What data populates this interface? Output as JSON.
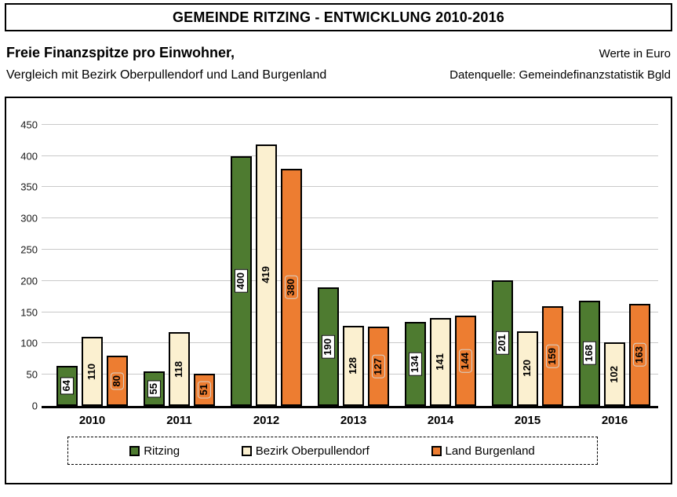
{
  "header": {
    "title": "GEMEINDE RITZING - ENTWICKLUNG 2010-2016",
    "subtitle_bold": "Freie Finanzspitze pro Einwohner,",
    "subtitle": "Vergleich mit Bezirk Oberpullendorf und Land Burgenland",
    "unit_note": "Werte in Euro",
    "source_note": "Datenquelle: Gemeindefinanzstatistik Bgld"
  },
  "chart_data": {
    "type": "bar",
    "categories": [
      "2010",
      "2011",
      "2012",
      "2013",
      "2014",
      "2015",
      "2016"
    ],
    "series": [
      {
        "name": "Ritzing",
        "color": "#4e7b30",
        "label_style": "white-box",
        "values": [
          64,
          55,
          400,
          190,
          134,
          201,
          168
        ]
      },
      {
        "name": "Bezirk Oberpullendorf",
        "color": "#fbf0d0",
        "label_style": "plain",
        "values": [
          110,
          118,
          419,
          128,
          141,
          120,
          102
        ]
      },
      {
        "name": "Land Burgenland",
        "color": "#ed7d31",
        "label_style": "orange-box",
        "values": [
          80,
          51,
          380,
          127,
          144,
          159,
          163
        ]
      }
    ],
    "xlabel": "",
    "ylabel": "",
    "ylim": [
      0,
      450
    ],
    "yticks": [
      0,
      50,
      100,
      150,
      200,
      250,
      300,
      350,
      400,
      450
    ],
    "grid": true,
    "legend_position": "bottom",
    "value_labels": "rotated-vertical-inside-bars",
    "colors": {
      "gridline": "#c9c9c9",
      "bar_border": "#000000",
      "axis_line": "#000000",
      "orange_label_border": "#d6d3cd"
    }
  }
}
